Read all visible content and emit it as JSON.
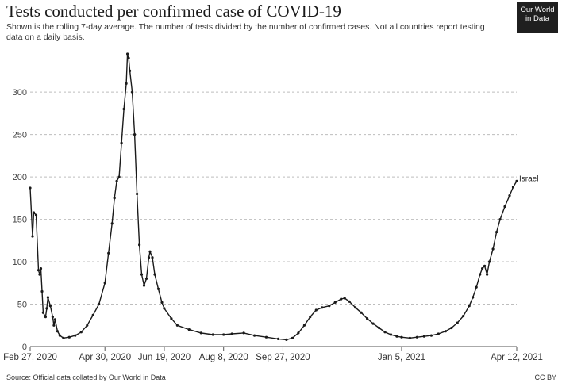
{
  "header": {
    "title": "Tests conducted per confirmed case of COVID-19",
    "subtitle": "Shown is the rolling 7-day average. The number of tests divided by the number of confirmed cases. Not all countries report testing data on a daily basis.",
    "logo_line1": "Our World",
    "logo_line2": "in Data"
  },
  "footer": {
    "source": "Source: Official data collated by Our World in Data",
    "license": "CC BY"
  },
  "chart_data": {
    "type": "line",
    "title": "Tests conducted per confirmed case of COVID-19",
    "ylim": [
      0,
      345
    ],
    "xlim": [
      "2020-02-27",
      "2021-04-12"
    ],
    "grid": "horizontal dashed",
    "y_ticks": [
      0,
      50,
      100,
      150,
      200,
      250,
      300
    ],
    "y_tick_labels": [
      "0",
      "50",
      "100",
      "150",
      "200",
      "250",
      "300"
    ],
    "x_ticks": [
      "2020-02-27",
      "2020-04-30",
      "2020-06-19",
      "2020-08-08",
      "2020-09-27",
      "2021-01-05",
      "2021-04-12"
    ],
    "x_tick_labels": [
      "Feb 27, 2020",
      "Apr 30, 2020",
      "Jun 19, 2020",
      "Aug 8, 2020",
      "Sep 27, 2020",
      "Jan 5, 2021",
      "Apr 12, 2021"
    ],
    "series": [
      {
        "name": "Israel",
        "color": "#1a1a1a",
        "points": [
          [
            "2020-02-27",
            187
          ],
          [
            "2020-02-29",
            130
          ],
          [
            "2020-03-01",
            158
          ],
          [
            "2020-03-03",
            155
          ],
          [
            "2020-03-05",
            90
          ],
          [
            "2020-03-06",
            85
          ],
          [
            "2020-03-07",
            92
          ],
          [
            "2020-03-08",
            65
          ],
          [
            "2020-03-09",
            40
          ],
          [
            "2020-03-11",
            35
          ],
          [
            "2020-03-12",
            45
          ],
          [
            "2020-03-13",
            58
          ],
          [
            "2020-03-15",
            48
          ],
          [
            "2020-03-17",
            35
          ],
          [
            "2020-03-18",
            25
          ],
          [
            "2020-03-19",
            32
          ],
          [
            "2020-03-21",
            18
          ],
          [
            "2020-03-23",
            13
          ],
          [
            "2020-03-26",
            10
          ],
          [
            "2020-03-31",
            11
          ],
          [
            "2020-04-05",
            13
          ],
          [
            "2020-04-10",
            17
          ],
          [
            "2020-04-15",
            25
          ],
          [
            "2020-04-20",
            37
          ],
          [
            "2020-04-25",
            50
          ],
          [
            "2020-04-30",
            75
          ],
          [
            "2020-05-03",
            110
          ],
          [
            "2020-05-06",
            145
          ],
          [
            "2020-05-08",
            175
          ],
          [
            "2020-05-10",
            195
          ],
          [
            "2020-05-12",
            200
          ],
          [
            "2020-05-14",
            240
          ],
          [
            "2020-05-16",
            280
          ],
          [
            "2020-05-18",
            310
          ],
          [
            "2020-05-19",
            345
          ],
          [
            "2020-05-20",
            340
          ],
          [
            "2020-05-21",
            325
          ],
          [
            "2020-05-23",
            300
          ],
          [
            "2020-05-25",
            250
          ],
          [
            "2020-05-27",
            180
          ],
          [
            "2020-05-29",
            120
          ],
          [
            "2020-05-31",
            85
          ],
          [
            "2020-06-02",
            72
          ],
          [
            "2020-06-04",
            80
          ],
          [
            "2020-06-06",
            105
          ],
          [
            "2020-06-07",
            112
          ],
          [
            "2020-06-09",
            105
          ],
          [
            "2020-06-11",
            85
          ],
          [
            "2020-06-14",
            68
          ],
          [
            "2020-06-17",
            52
          ],
          [
            "2020-06-19",
            45
          ],
          [
            "2020-06-25",
            33
          ],
          [
            "2020-06-30",
            25
          ],
          [
            "2020-07-10",
            20
          ],
          [
            "2020-07-20",
            16
          ],
          [
            "2020-07-30",
            14
          ],
          [
            "2020-08-08",
            14
          ],
          [
            "2020-08-15",
            15
          ],
          [
            "2020-08-25",
            16
          ],
          [
            "2020-09-03",
            13
          ],
          [
            "2020-09-13",
            11
          ],
          [
            "2020-09-23",
            9
          ],
          [
            "2020-09-30",
            8
          ],
          [
            "2020-10-05",
            10
          ],
          [
            "2020-10-10",
            16
          ],
          [
            "2020-10-15",
            25
          ],
          [
            "2020-10-20",
            35
          ],
          [
            "2020-10-25",
            43
          ],
          [
            "2020-10-30",
            46
          ],
          [
            "2020-11-05",
            48
          ],
          [
            "2020-11-10",
            52
          ],
          [
            "2020-11-15",
            56
          ],
          [
            "2020-11-18",
            57
          ],
          [
            "2020-11-22",
            53
          ],
          [
            "2020-11-27",
            46
          ],
          [
            "2020-12-02",
            40
          ],
          [
            "2020-12-07",
            33
          ],
          [
            "2020-12-12",
            27
          ],
          [
            "2020-12-17",
            22
          ],
          [
            "2020-12-22",
            17
          ],
          [
            "2020-12-27",
            14
          ],
          [
            "2021-01-01",
            12
          ],
          [
            "2021-01-05",
            11
          ],
          [
            "2021-01-12",
            10
          ],
          [
            "2021-01-18",
            11
          ],
          [
            "2021-01-24",
            12
          ],
          [
            "2021-01-30",
            13
          ],
          [
            "2021-02-05",
            15
          ],
          [
            "2021-02-11",
            18
          ],
          [
            "2021-02-16",
            22
          ],
          [
            "2021-02-21",
            28
          ],
          [
            "2021-02-26",
            36
          ],
          [
            "2021-03-03",
            48
          ],
          [
            "2021-03-06",
            58
          ],
          [
            "2021-03-09",
            70
          ],
          [
            "2021-03-12",
            85
          ],
          [
            "2021-03-14",
            92
          ],
          [
            "2021-03-16",
            95
          ],
          [
            "2021-03-18",
            85
          ],
          [
            "2021-03-20",
            100
          ],
          [
            "2021-03-23",
            115
          ],
          [
            "2021-03-26",
            135
          ],
          [
            "2021-03-29",
            150
          ],
          [
            "2021-04-02",
            165
          ],
          [
            "2021-04-06",
            178
          ],
          [
            "2021-04-09",
            188
          ],
          [
            "2021-04-12",
            195
          ]
        ],
        "label": "Israel"
      }
    ]
  }
}
